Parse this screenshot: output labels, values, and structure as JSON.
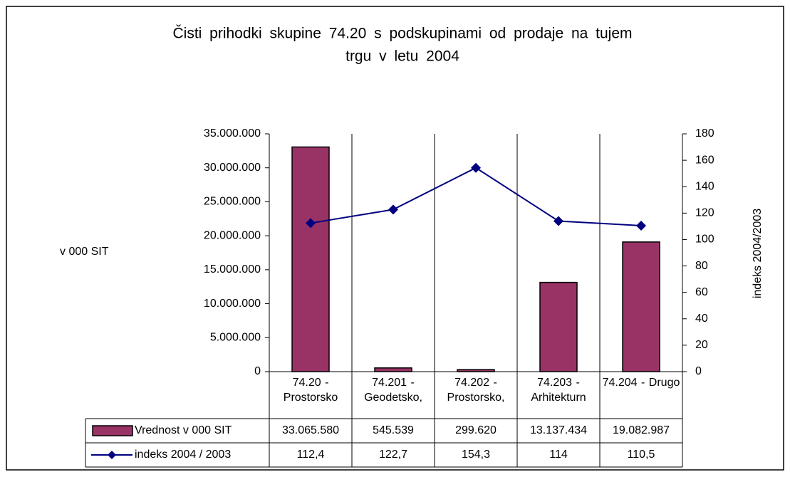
{
  "chart_data": {
    "type": "bar",
    "title": [
      "Čisti prihodki skupine 74.20 s podskupinami od prodaje na tujem",
      "trgu  v  letu 2004"
    ],
    "ylabel": "v 000 SIT",
    "y2label": "indeks 2004/2003",
    "categories": [
      "74.20 - Prostorsko",
      "74.201 - Geodetsko,",
      "74.202 - Prostorsko,",
      "74.203 - Arhitekturn",
      "74.204 - Drugo"
    ],
    "series": [
      {
        "name": "Vrednost v 000 SIT",
        "type": "bar",
        "color": "#993366",
        "values": [
          33065580,
          545539,
          299620,
          13137434,
          19082987
        ],
        "value_labels": [
          "33.065.580",
          "545.539",
          "299.620",
          "13.137.434",
          "19.082.987"
        ]
      },
      {
        "name": "indeks 2004 / 2003",
        "type": "line",
        "axis": "y2",
        "color": "#000080",
        "values": [
          112.4,
          122.7,
          154.3,
          114,
          110.5
        ],
        "value_labels": [
          "112,4",
          "122,7",
          "154,3",
          "114",
          "110,5"
        ]
      }
    ],
    "ylim": [
      0,
      35000000
    ],
    "yticks": [
      0,
      {
        "value": 5000000,
        "label": "5.000.000"
      },
      {
        "value": 10000000,
        "label": "10.000.000"
      },
      {
        "value": 15000000,
        "label": "15.000.000"
      },
      {
        "value": 20000000,
        "label": "20.000.000"
      },
      {
        "value": 25000000,
        "label": "25.000.000"
      },
      {
        "value": 30000000,
        "label": "30.000.000"
      },
      {
        "value": 35000000,
        "label": "35.000.000"
      }
    ],
    "y2lim": [
      0,
      180
    ],
    "y2ticks": [
      0,
      20,
      40,
      60,
      80,
      100,
      120,
      140,
      160,
      180
    ]
  }
}
